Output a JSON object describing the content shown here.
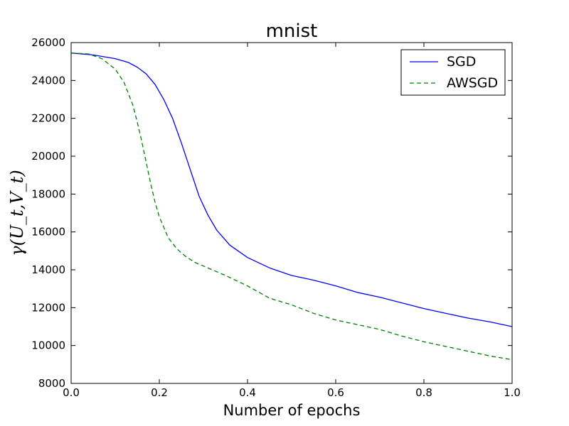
{
  "chart_data": {
    "type": "line",
    "title": "mnist",
    "xlabel": "Number of epochs",
    "ylabel": "γ(U_t,V_t)",
    "xlim": [
      0.0,
      1.0
    ],
    "ylim": [
      8000,
      26000
    ],
    "xticks": [
      "0.0",
      "0.2",
      "0.4",
      "0.6",
      "0.8",
      "1.0"
    ],
    "yticks": [
      "8000",
      "10000",
      "12000",
      "14000",
      "16000",
      "18000",
      "20000",
      "22000",
      "24000",
      "26000"
    ],
    "grid": false,
    "legend_position": "top-right",
    "series": [
      {
        "name": "SGD",
        "color": "#0000ff",
        "style": "solid",
        "x": [
          0.0,
          0.05,
          0.1,
          0.13,
          0.15,
          0.17,
          0.19,
          0.21,
          0.23,
          0.25,
          0.27,
          0.29,
          0.31,
          0.33,
          0.36,
          0.4,
          0.45,
          0.5,
          0.55,
          0.6,
          0.65,
          0.7,
          0.75,
          0.8,
          0.85,
          0.9,
          0.95,
          1.0
        ],
        "y": [
          25450,
          25350,
          25150,
          24950,
          24700,
          24350,
          23800,
          23000,
          22000,
          20700,
          19300,
          17900,
          16900,
          16100,
          15300,
          14650,
          14100,
          13700,
          13450,
          13150,
          12800,
          12550,
          12250,
          11950,
          11700,
          11450,
          11250,
          11000
        ]
      },
      {
        "name": "AWSGD",
        "color": "#008000",
        "style": "dashed",
        "x": [
          0.0,
          0.04,
          0.07,
          0.1,
          0.12,
          0.14,
          0.15,
          0.16,
          0.17,
          0.18,
          0.19,
          0.2,
          0.22,
          0.24,
          0.26,
          0.28,
          0.3,
          0.35,
          0.4,
          0.45,
          0.5,
          0.55,
          0.6,
          0.65,
          0.7,
          0.75,
          0.8,
          0.85,
          0.9,
          0.95,
          1.0
        ],
        "y": [
          25450,
          25400,
          25150,
          24600,
          23900,
          22700,
          21800,
          20800,
          19700,
          18600,
          17600,
          16800,
          15700,
          15100,
          14700,
          14400,
          14200,
          13700,
          13150,
          12500,
          12150,
          11700,
          11350,
          11100,
          10850,
          10500,
          10200,
          9950,
          9700,
          9450,
          9250
        ]
      }
    ]
  }
}
